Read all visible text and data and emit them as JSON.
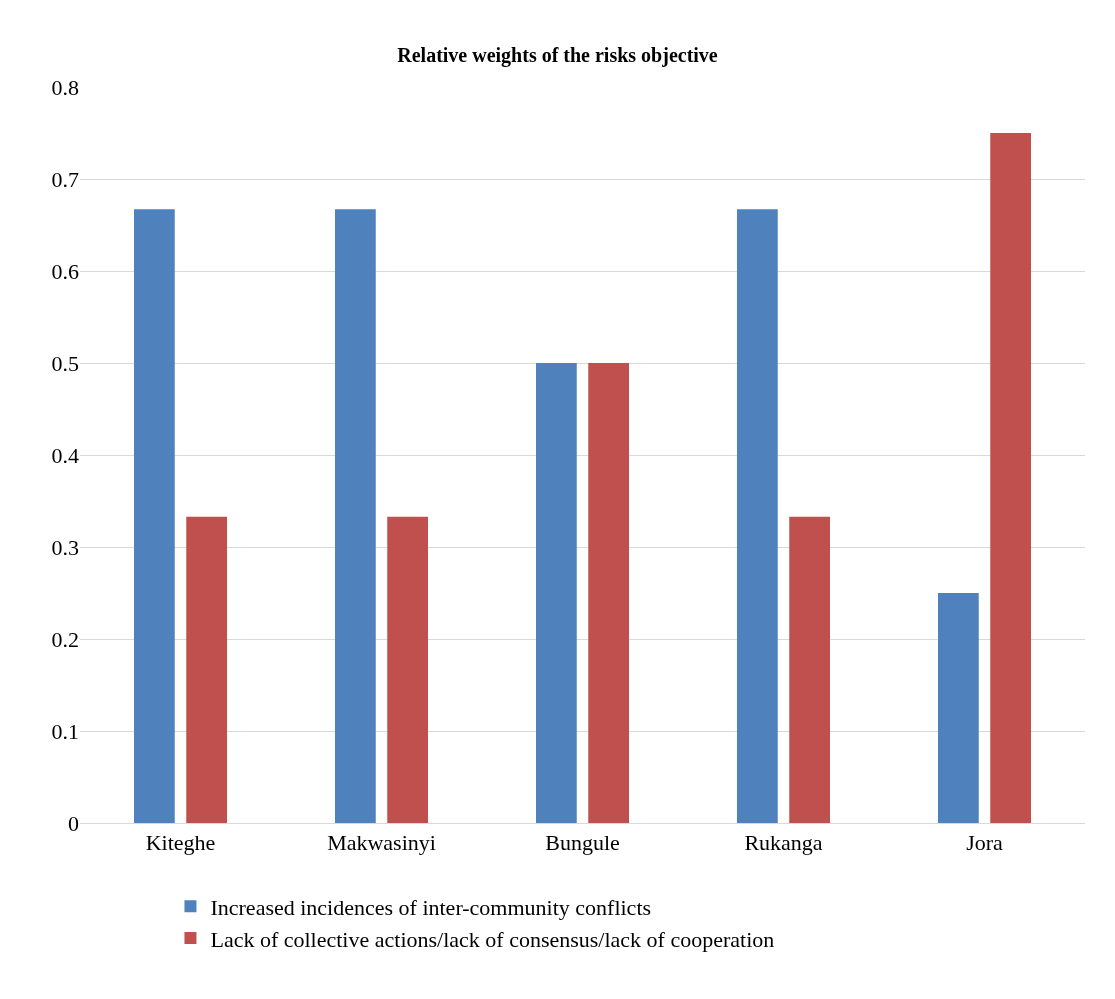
{
  "chart_data": {
    "type": "bar",
    "title": "Relative weights of the risks objective",
    "categories": [
      "Kiteghe",
      "Makwasinyi",
      "Bungule",
      "Rukanga",
      "Jora"
    ],
    "series": [
      {
        "name": "Increased incidences of inter-community conflicts",
        "color": "#4f81bd",
        "values": [
          0.667,
          0.667,
          0.5,
          0.667,
          0.25
        ]
      },
      {
        "name": "Lack of collective actions/lack of consensus/lack of cooperation",
        "color": "#c0504d",
        "values": [
          0.333,
          0.333,
          0.5,
          0.333,
          0.75
        ]
      }
    ],
    "ylim": [
      0,
      0.8
    ],
    "yticks": [
      0,
      0.1,
      0.2,
      0.3,
      0.4,
      0.5,
      0.6,
      0.7,
      0.8
    ],
    "grid": "y",
    "legend": "bottom"
  }
}
